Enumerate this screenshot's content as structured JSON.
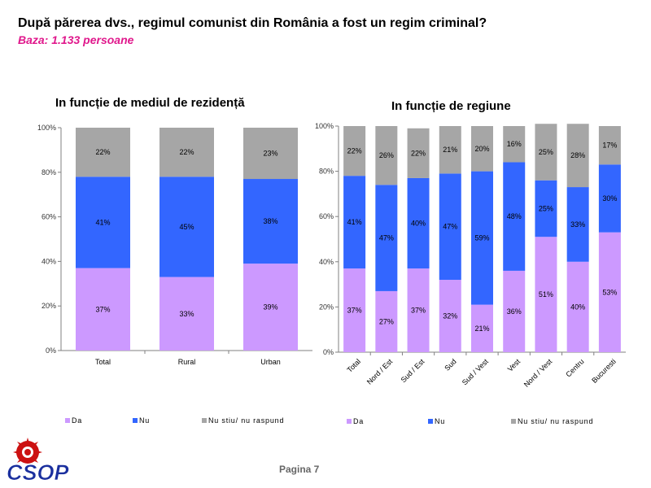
{
  "header": {
    "title": "După părerea dvs., regimul comunist din România a fost un regim criminal?",
    "subtitle": "Baza: 1.133 persoane"
  },
  "footer": {
    "page": "Pagina 7"
  },
  "logo": {
    "text": "CSOP"
  },
  "colors": {
    "Da": "#cc99ff",
    "Nu": "#3366ff",
    "Nu stiu/ nu raspund": "#a6a6a6",
    "title_accent": "#e0188c"
  },
  "chart_data": [
    {
      "type": "bar",
      "stacked": true,
      "title": "In funcție de mediul de rezidență",
      "categories": [
        "Total",
        "Rural",
        "Urban"
      ],
      "series": [
        {
          "name": "Da",
          "values": [
            37,
            33,
            39
          ]
        },
        {
          "name": "Nu",
          "values": [
            41,
            45,
            38
          ]
        },
        {
          "name": "Nu stiu/ nu raspund",
          "values": [
            22,
            22,
            23
          ]
        }
      ],
      "yticks": [
        "0%",
        "20%",
        "40%",
        "60%",
        "80%",
        "100%"
      ],
      "ylim": [
        0,
        100
      ],
      "legend": "bottom"
    },
    {
      "type": "bar",
      "stacked": true,
      "title": "In funcție de regiune",
      "categories": [
        "Total",
        "Nord / Est",
        "Sud / Est",
        "Sud",
        "Sud / Vest",
        "Vest",
        "Nord / Vest",
        "Centru",
        "Bucuresti"
      ],
      "series": [
        {
          "name": "Da",
          "values": [
            37,
            27,
            37,
            32,
            21,
            36,
            51,
            40,
            53
          ]
        },
        {
          "name": "Nu",
          "values": [
            41,
            47,
            40,
            47,
            59,
            48,
            25,
            33,
            30
          ]
        },
        {
          "name": "Nu stiu/ nu raspund",
          "values": [
            22,
            26,
            22,
            21,
            20,
            16,
            25,
            28,
            17
          ]
        }
      ],
      "yticks": [
        "0%",
        "20%",
        "40%",
        "60%",
        "80%",
        "100%"
      ],
      "ylim": [
        0,
        100
      ],
      "legend": "bottom"
    }
  ]
}
